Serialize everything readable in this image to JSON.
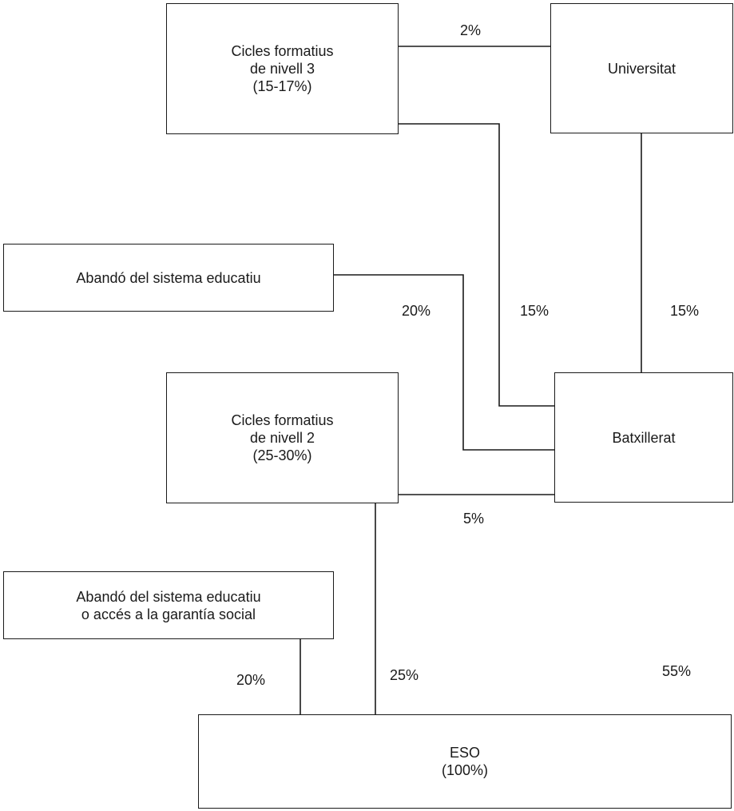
{
  "nodes": {
    "cicles_nivell_3": {
      "lines": [
        "Cicles formatius",
        "de nivell 3",
        "(15-17%)"
      ]
    },
    "universitat": {
      "lines": [
        "Universitat"
      ]
    },
    "abandono_1": {
      "lines": [
        "Abandó del sistema educatiu"
      ]
    },
    "cicles_nivell_2": {
      "lines": [
        "Cicles formatius",
        "de nivell 2",
        "(25-30%)"
      ]
    },
    "batxillerat": {
      "lines": [
        "Batxillerat"
      ]
    },
    "abandono_2": {
      "lines": [
        "Abandó del sistema educatiu",
        "o accés a la garantía social"
      ]
    },
    "eso": {
      "lines": [
        "ESO",
        "(100%)"
      ]
    }
  },
  "flows": {
    "cicles3_to_universitat": "2%",
    "abandono1_from_batxillerat": "20%",
    "cicles3_from_batxillerat": "15%",
    "universitat_from_batxillerat": "15%",
    "cicles2_to_batxillerat": "5%",
    "abandono2_from_eso": "20%",
    "cicles2_from_eso": "25%",
    "batxillerat_from_eso": "55%"
  }
}
